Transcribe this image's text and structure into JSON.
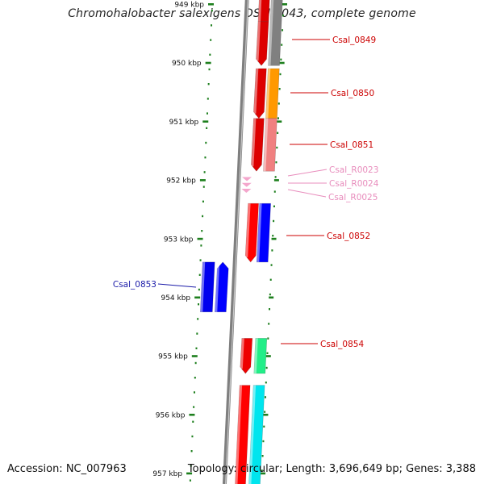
{
  "title": "Chromohalobacter salexigens DSM 3043, complete genome",
  "footer": {
    "accession": "Accession: NC_007963",
    "topology": "Topology: circular; Length: 3,696,649 bp; Genes: 3,388"
  },
  "colors": {
    "backbone": "#7f7f7f",
    "ticks": "#1d7f1d",
    "tick_label": "#111111",
    "label_red": "#cc0000",
    "label_pink": "#e88cbc",
    "label_blue": "#1a1aa8"
  },
  "chart_data": {
    "type": "genome_map",
    "scale_labels": [
      "949 kbp",
      "950 kbp",
      "951 kbp",
      "952 kbp",
      "953 kbp",
      "954 kbp",
      "955 kbp",
      "956 kbp",
      "957 kbp"
    ],
    "scale_positions_kbp": [
      949,
      950,
      951,
      952,
      953,
      954,
      955,
      956,
      957
    ],
    "genes": [
      {
        "label": "",
        "strand": "-",
        "start_kbp": 948.7,
        "end_kbp": 949.3,
        "color": "#dd0000",
        "arrow": false
      },
      {
        "label": "Csal_0849",
        "strand": "-",
        "start_kbp": 949.3,
        "end_kbp": 950.05,
        "color": "#dd0000",
        "arrow": true,
        "label_color": "red"
      },
      {
        "label": "",
        "strand": "+",
        "start_kbp": 948.7,
        "end_kbp": 950.05,
        "color": "#808080",
        "arrow": false
      },
      {
        "label": "",
        "strand": "-",
        "start_kbp": 950.1,
        "end_kbp": 950.95,
        "color": "#dd0000",
        "arrow": true
      },
      {
        "label": "Csal_0850",
        "strand": "+",
        "start_kbp": 950.1,
        "end_kbp": 950.95,
        "color": "#ff9900",
        "arrow": false,
        "label_color": "red"
      },
      {
        "label": "",
        "strand": "-",
        "start_kbp": 950.95,
        "end_kbp": 951.85,
        "color": "#dd0000",
        "arrow": true
      },
      {
        "label": "Csal_0851",
        "strand": "+",
        "start_kbp": 950.95,
        "end_kbp": 951.85,
        "color": "#f08080",
        "arrow": false,
        "label_color": "red"
      },
      {
        "label": "Csal_R0023",
        "strand": "-",
        "start_kbp": 951.95,
        "end_kbp": 952.02,
        "color": "#f4a6cc",
        "arrow": true,
        "label_color": "pink"
      },
      {
        "label": "Csal_R0024",
        "strand": "-",
        "start_kbp": 952.05,
        "end_kbp": 952.12,
        "color": "#f4a6cc",
        "arrow": true,
        "label_color": "pink"
      },
      {
        "label": "Csal_R0025",
        "strand": "-",
        "start_kbp": 952.15,
        "end_kbp": 952.22,
        "color": "#f4a6cc",
        "arrow": true,
        "label_color": "pink"
      },
      {
        "label": "",
        "strand": "-",
        "start_kbp": 952.4,
        "end_kbp": 953.4,
        "color": "#ff0000",
        "arrow": true
      },
      {
        "label": "Csal_0852",
        "strand": "+",
        "start_kbp": 952.4,
        "end_kbp": 953.4,
        "color": "#0000ff",
        "arrow": false,
        "label_color": "red"
      },
      {
        "label": "Csal_0853",
        "strand": "+",
        "start_kbp": 953.4,
        "end_kbp": 954.25,
        "color": "#0000ee",
        "arrow": false,
        "label_color": "blue"
      },
      {
        "label": "",
        "strand": "+",
        "start_kbp": 953.4,
        "end_kbp": 954.25,
        "color": "#0000ff",
        "arrow": true
      },
      {
        "label": "",
        "strand": "-",
        "start_kbp": 954.7,
        "end_kbp": 955.3,
        "color": "#ee0000",
        "arrow": true
      },
      {
        "label": "Csal_0854",
        "strand": "+",
        "start_kbp": 954.7,
        "end_kbp": 955.3,
        "color": "#22ee88",
        "arrow": false,
        "label_color": "red"
      },
      {
        "label": "",
        "strand": "-",
        "start_kbp": 955.5,
        "end_kbp": 957.2,
        "color": "#ff0000",
        "arrow": false
      },
      {
        "label": "",
        "strand": "+",
        "start_kbp": 955.5,
        "end_kbp": 957.2,
        "color": "#00e5ee",
        "arrow": false
      }
    ]
  }
}
